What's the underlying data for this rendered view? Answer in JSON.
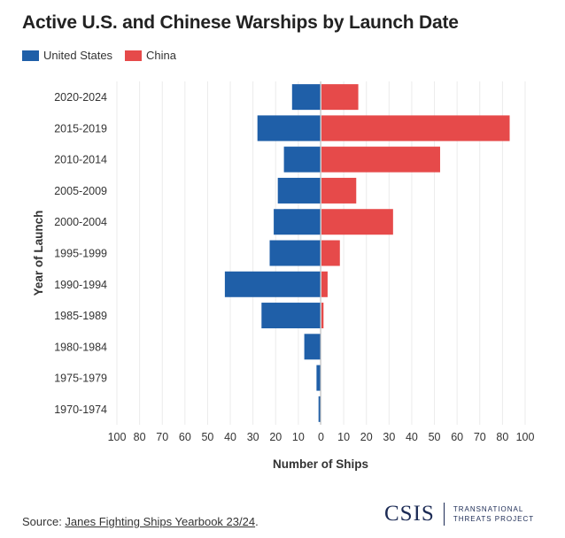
{
  "title": "Active U.S. and Chinese Warships by Launch Date",
  "legend": [
    {
      "name": "United States",
      "color": "#1f5fa8"
    },
    {
      "name": "China",
      "color": "#e64a4a"
    }
  ],
  "source": {
    "prefix": "Source: ",
    "link_text": "Janes Fighting Ships Yearbook 23/24",
    "suffix": "."
  },
  "logo": {
    "name": "CSIS",
    "sub_line1": "TRANSNATIONAL",
    "sub_line2": "THREATS PROJECT"
  },
  "chart_data": {
    "type": "bar",
    "orientation": "horizontal-butterfly",
    "categories": [
      "2020-2024",
      "2015-2019",
      "2010-2014",
      "2005-2009",
      "2000-2004",
      "1995-1999",
      "1990-1994",
      "1985-1989",
      "1980-1984",
      "1975-1979",
      "1970-1974"
    ],
    "series": [
      {
        "name": "United States",
        "color": "#1f5fa8",
        "values": [
          14,
          31,
          18,
          21,
          23,
          25,
          47,
          29,
          8,
          2,
          1
        ]
      },
      {
        "name": "China",
        "color": "#e64a4a",
        "values": [
          18,
          92,
          58,
          17,
          35,
          9,
          3,
          1,
          0,
          0,
          0
        ]
      }
    ],
    "xlabel": "Number of Ships",
    "ylabel": "Year of Launch",
    "x_tick_labels": [
      "100",
      "80",
      "70",
      "60",
      "50",
      "40",
      "30",
      "20",
      "10",
      "0",
      "10",
      "20",
      "30",
      "40",
      "50",
      "60",
      "70",
      "80",
      "100"
    ],
    "xlim": [
      -100,
      100
    ],
    "grid": true
  }
}
